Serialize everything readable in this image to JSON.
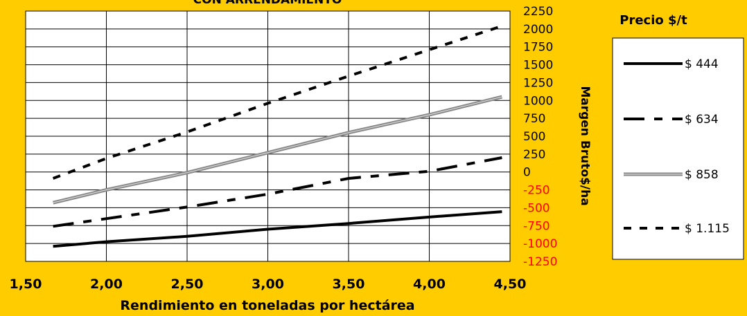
{
  "chart_data": {
    "type": "line",
    "title": "CON ARRENDAMIENTO",
    "xlabel": "Rendimiento en toneladas por hectárea",
    "ylabel": "Margen Bruto$/ha",
    "xlim": [
      1.5,
      4.5
    ],
    "ylim": [
      -1250,
      2250
    ],
    "x_ticks": [
      "1,50",
      "2,00",
      "2,50",
      "3,00",
      "3,50",
      "4,00",
      "4,50"
    ],
    "y_ticks": [
      "2250",
      "2000",
      "1750",
      "1500",
      "1250",
      "1000",
      "750",
      "500",
      "250",
      "0",
      "-250",
      "-500",
      "-750",
      "-1000",
      "-1250"
    ],
    "grid": true,
    "legend_title": "Precio $/t",
    "legend_position": "right",
    "positive_tick_color": "#000000",
    "negative_tick_color": "#FF0000",
    "series": [
      {
        "name": "$ 444",
        "style": "solid",
        "color": "#000000",
        "x": [
          1.67,
          2.0,
          2.5,
          3.0,
          3.5,
          4.0,
          4.45
        ],
        "y": [
          -1040,
          -975,
          -900,
          -800,
          -720,
          -630,
          -555
        ]
      },
      {
        "name": "$ 634",
        "style": "long-dash",
        "color": "#000000",
        "x": [
          1.67,
          2.5,
          3.0,
          3.5,
          4.0,
          4.45
        ],
        "y": [
          -760,
          -490,
          -310,
          -90,
          10,
          200
        ]
      },
      {
        "name": "$ 858",
        "style": "double",
        "color": "#888888",
        "x": [
          1.67,
          2.0,
          2.5,
          3.0,
          3.5,
          4.0,
          4.45
        ],
        "y": [
          -430,
          -250,
          -10,
          270,
          550,
          800,
          1050
        ]
      },
      {
        "name": "$ 1.115",
        "style": "short-dash",
        "color": "#000000",
        "x": [
          1.67,
          2.0,
          2.5,
          3.0,
          3.5,
          4.0,
          4.45
        ],
        "y": [
          -90,
          190,
          560,
          960,
          1340,
          1710,
          2040
        ]
      }
    ]
  }
}
